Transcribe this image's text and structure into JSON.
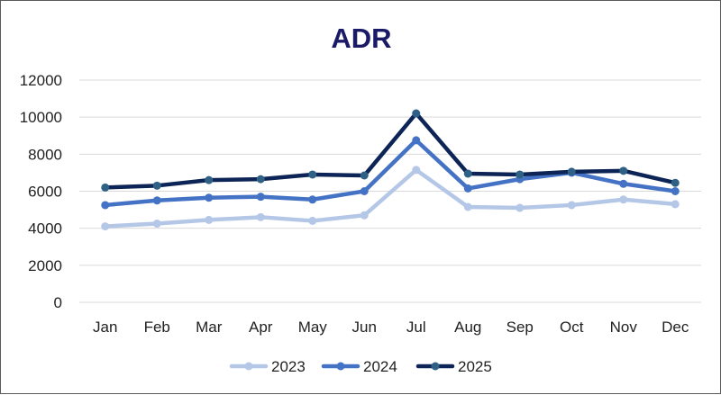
{
  "chart_data": {
    "type": "line",
    "title": "ADR",
    "xlabel": "",
    "ylabel": "",
    "categories": [
      "Jan",
      "Feb",
      "Mar",
      "Apr",
      "May",
      "Jun",
      "Jul",
      "Aug",
      "Sep",
      "Oct",
      "Nov",
      "Dec"
    ],
    "ylim": [
      0,
      12000
    ],
    "yticks": [
      "0",
      "2000",
      "4000",
      "6000",
      "8000",
      "10000",
      "12000"
    ],
    "grid": true,
    "legend": "bottom",
    "series": [
      {
        "name": "2023",
        "color": "#b4c7e7",
        "values": [
          4100,
          4250,
          4450,
          4600,
          4400,
          4700,
          7150,
          5150,
          5100,
          5250,
          5550,
          5300
        ]
      },
      {
        "name": "2024",
        "color": "#4472c4",
        "values": [
          5250,
          5500,
          5650,
          5700,
          5550,
          6000,
          8750,
          6150,
          6650,
          7000,
          6400,
          6000
        ]
      },
      {
        "name": "2025",
        "color": "#0d2456",
        "marker": "#2e6185",
        "values": [
          6200,
          6300,
          6600,
          6650,
          6900,
          6850,
          10200,
          6950,
          6900,
          7050,
          7100,
          6450
        ]
      }
    ]
  }
}
